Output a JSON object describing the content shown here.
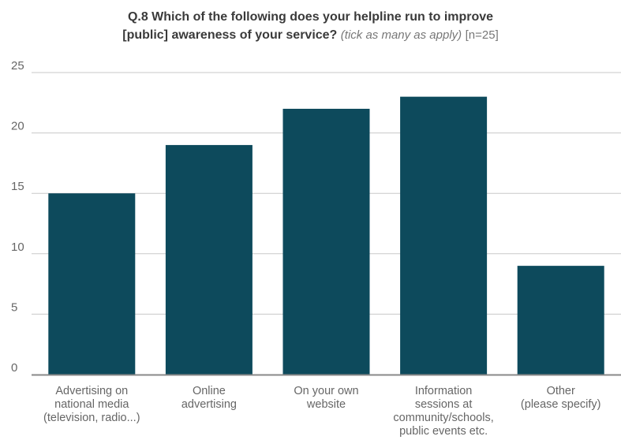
{
  "chart_data": {
    "type": "bar",
    "title_line1": "Q.8 Which of the following does your helpline run to improve",
    "title_line2": "[public] awareness of your service?",
    "subtitle": "(tick as many as apply)",
    "sample_note": "[n=25]",
    "categories": [
      [
        "Advertising on",
        "national media",
        "(television, radio...)"
      ],
      [
        "Online",
        "advertising"
      ],
      [
        "On your own",
        "website"
      ],
      [
        "Information",
        "sessions at",
        "community/schools,",
        "public events etc."
      ],
      [
        "Other",
        "(please specify)"
      ]
    ],
    "values": [
      15,
      19,
      22,
      23,
      9
    ],
    "yticks": [
      0,
      5,
      10,
      15,
      20,
      25
    ],
    "ylim": [
      0,
      25
    ],
    "grid": true,
    "colors": {
      "bar": "#0d4a5c",
      "grid": "#c8c8c8",
      "axis": "#888888"
    }
  }
}
